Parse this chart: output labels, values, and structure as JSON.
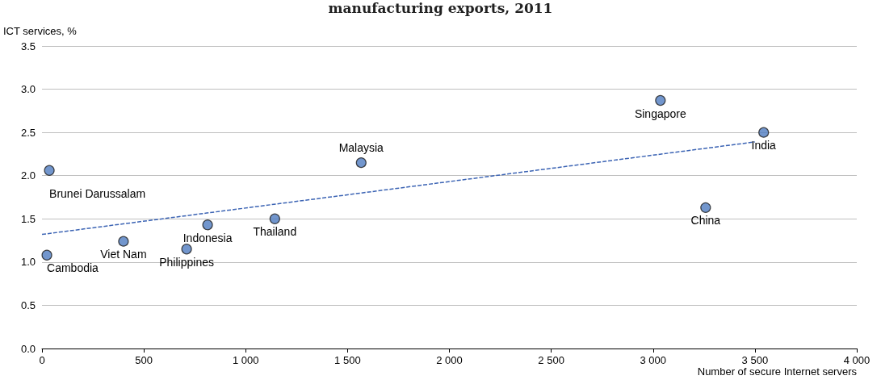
{
  "chart_data": {
    "type": "scatter",
    "title": "manufacturing exports, 2011",
    "ylabel": "ICT services, %",
    "xlabel": "Number of secure Internet servers",
    "series": [
      {
        "color": "#4f7cc0",
        "marker": "circle",
        "x": [
          24,
          36,
          400,
          710,
          813,
          1143,
          1567,
          3036,
          3258,
          3543
        ],
        "values": [
          1.08,
          2.06,
          1.24,
          1.15,
          1.43,
          1.5,
          2.15,
          2.87,
          1.63,
          2.5
        ]
      },
      {
        "type": "line",
        "color": "#3c64b4",
        "marker": "none",
        "line_style": "dashed",
        "x": [
          0,
          3500
        ],
        "values": [
          1.32,
          2.39
        ]
      }
    ],
    "annotations": [
      {
        "text": "Cambodia",
        "x": 24,
        "y": 1.08
      },
      {
        "text": "Brunei Darussalam",
        "x": 36,
        "y": 2.06
      },
      {
        "text": "Viet Nam",
        "x": 400,
        "y": 1.24
      },
      {
        "text": "Philippines",
        "x": 710,
        "y": 1.15
      },
      {
        "text": "Indonesia",
        "x": 813,
        "y": 1.43
      },
      {
        "text": "Thailand",
        "x": 1143,
        "y": 1.5
      },
      {
        "text": "Malaysia",
        "x": 1567,
        "y": 2.15
      },
      {
        "text": "Singapore",
        "x": 3036,
        "y": 2.87
      },
      {
        "text": "China",
        "x": 3258,
        "y": 1.63
      },
      {
        "text": "India",
        "x": 3543,
        "y": 2.5
      }
    ],
    "xlim": [
      0,
      4000
    ],
    "xticks": [
      0,
      500,
      {
        "value": 1000,
        "label": "1 000"
      },
      {
        "value": 1500,
        "label": "1 500"
      },
      {
        "value": 2000,
        "label": "2 000"
      },
      {
        "value": 2500,
        "label": "2 500"
      },
      {
        "value": 3000,
        "label": "3 000"
      },
      {
        "value": 3500,
        "label": "3 500"
      },
      {
        "value": 4000,
        "label": "4 000"
      }
    ],
    "ylim": [
      0,
      3.5
    ],
    "yticks": [
      {
        "value": 0,
        "label": "0.0"
      },
      0.5,
      {
        "value": 1,
        "label": "1.0"
      },
      1.5,
      {
        "value": 2,
        "label": "2.0"
      },
      2.5,
      {
        "value": 3,
        "label": "3.0"
      },
      3.5
    ],
    "grid": "y"
  }
}
